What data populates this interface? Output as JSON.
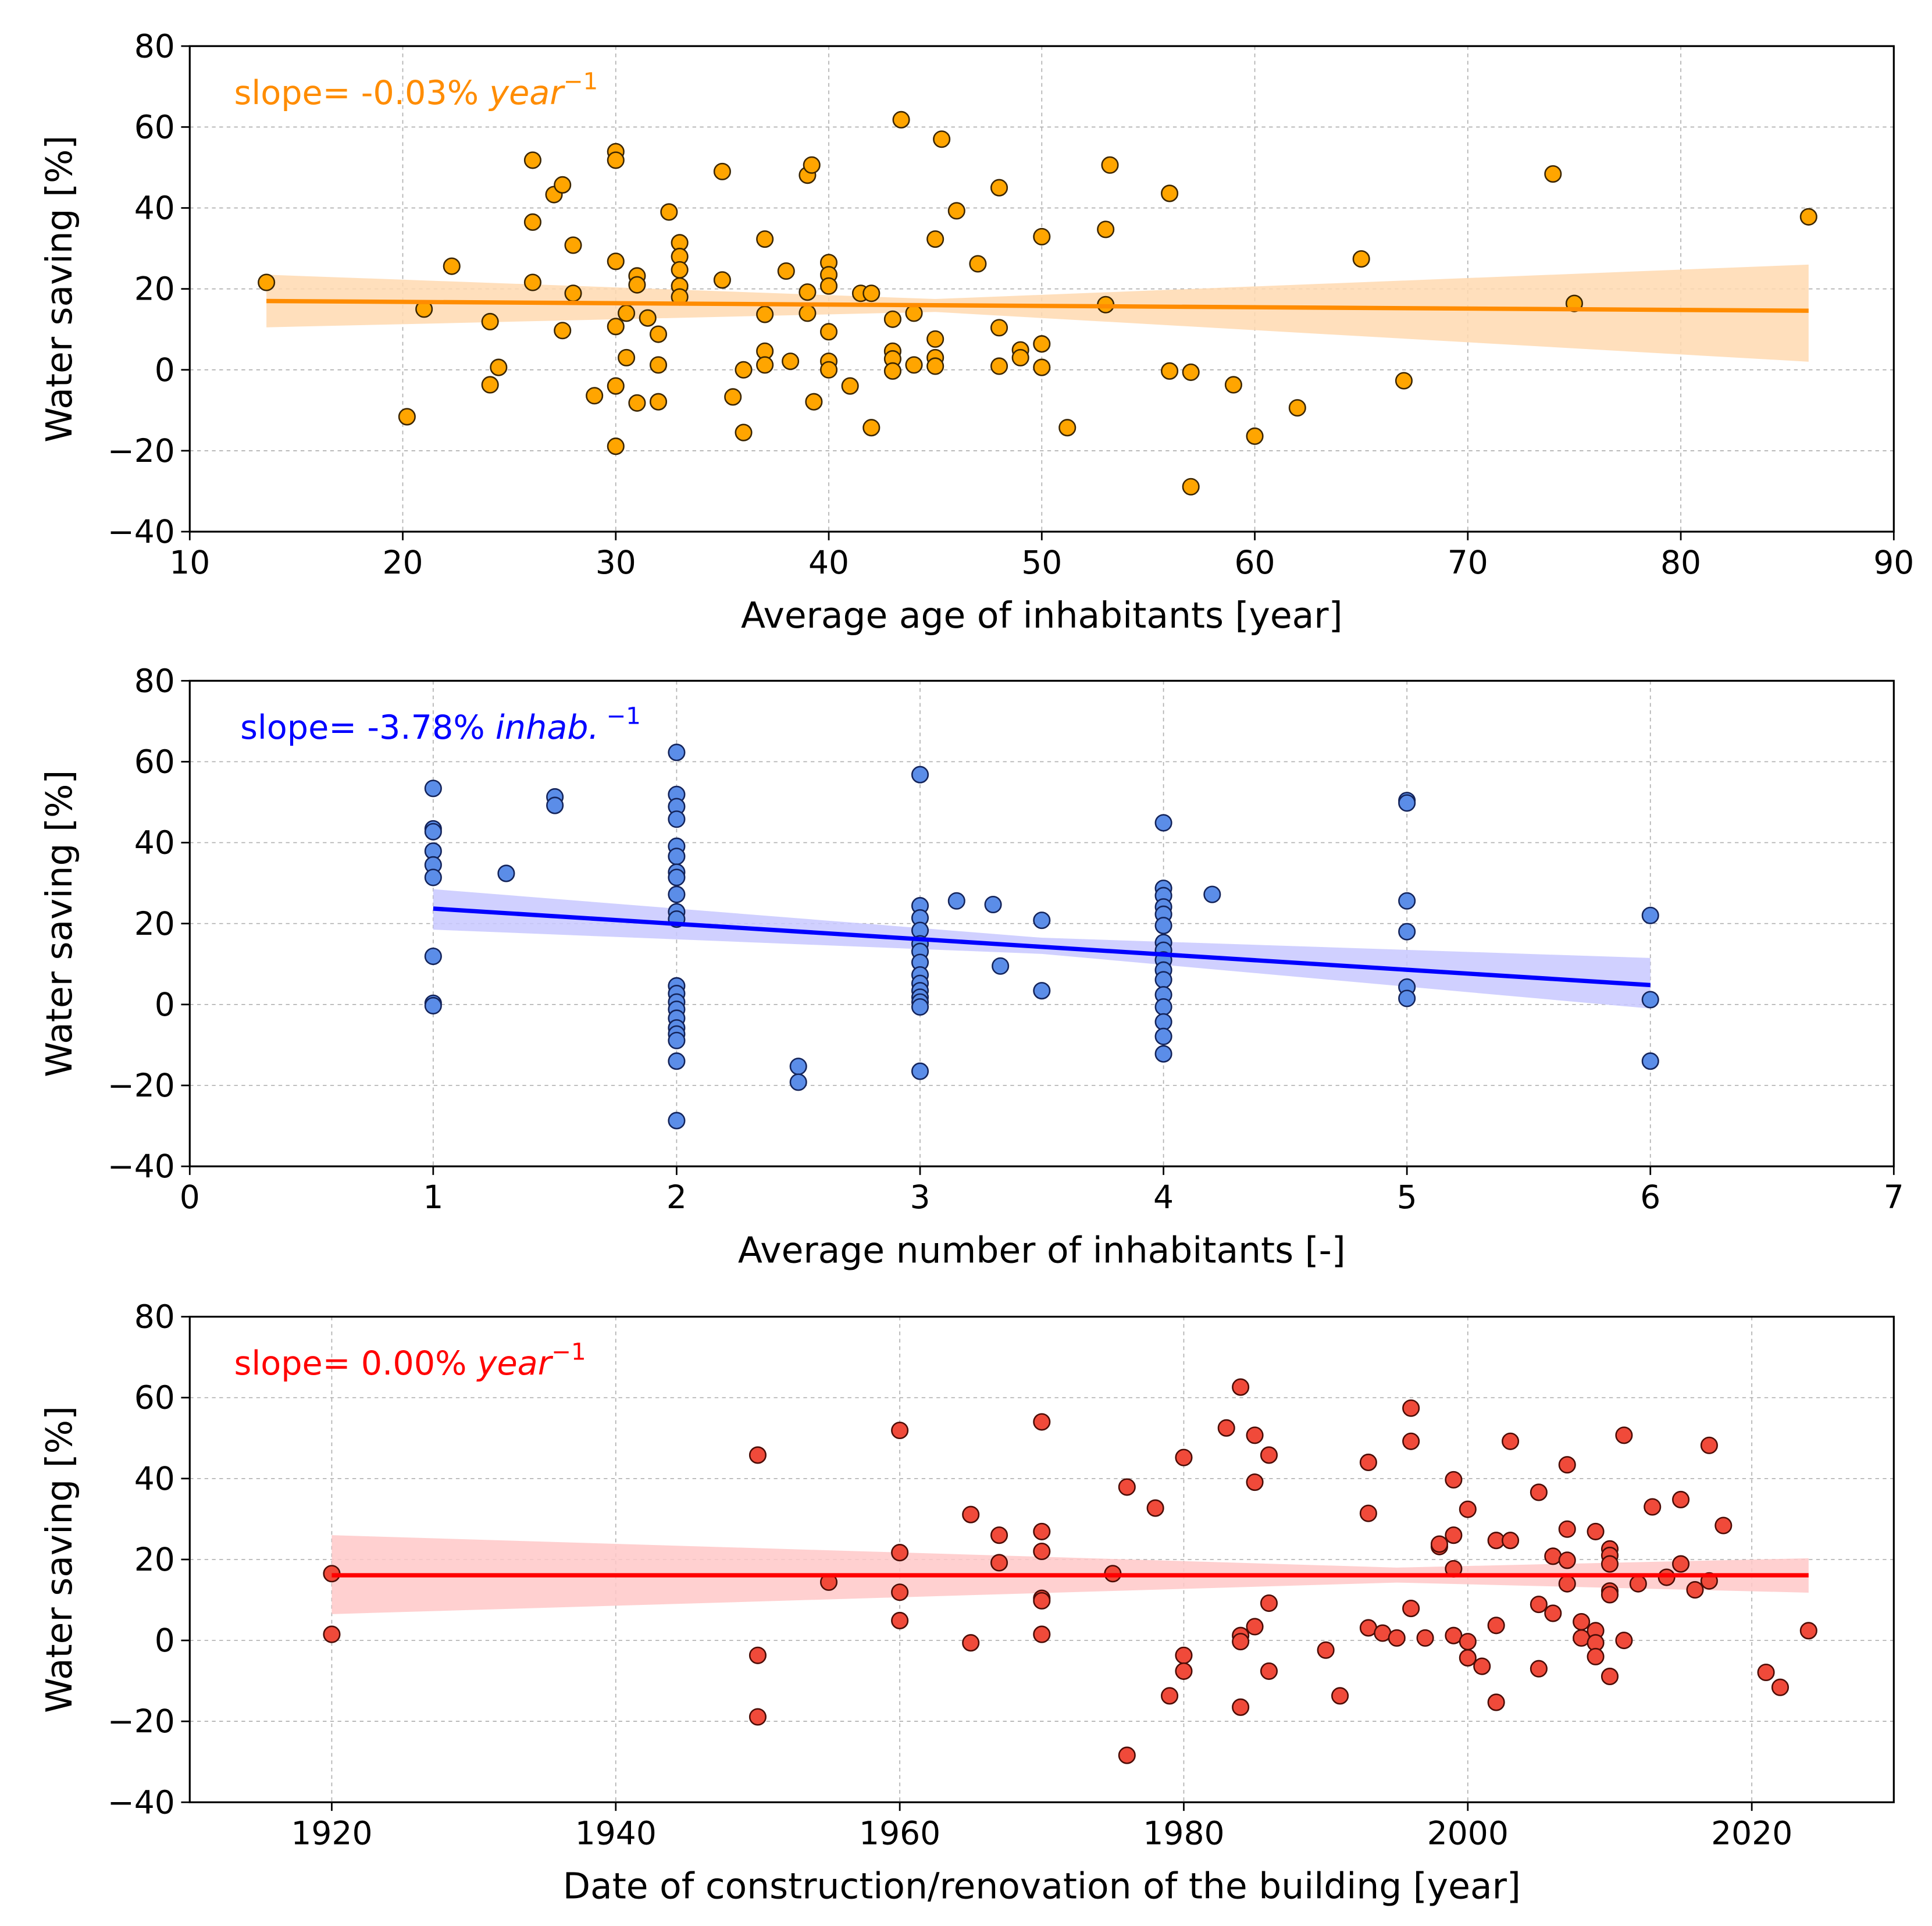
{
  "chart_data": [
    {
      "type": "scatter",
      "title": "",
      "xlabel": "Average age of inhabitants [year]",
      "ylabel": "Water saving [%]",
      "annotation": {
        "text": "slope= -0.03% ",
        "unit": "year",
        "sup": "−1"
      },
      "xlim": [
        10,
        90
      ],
      "ylim": [
        -40,
        80
      ],
      "xticks": [
        10,
        20,
        30,
        40,
        50,
        60,
        70,
        80,
        90
      ],
      "yticks": [
        -40,
        -20,
        0,
        20,
        40,
        60,
        80
      ],
      "xtick_labels": [
        "10",
        "20",
        "30",
        "40",
        "50",
        "60",
        "70",
        "80",
        "90"
      ],
      "grid": true,
      "colors": {
        "point": "#FFA500",
        "edge": "#3a2500",
        "line": "#FF8C00",
        "band": "#FFD9B0",
        "text": "#FF8C00"
      },
      "regression": {
        "x": [
          13.6,
          86
        ],
        "y": [
          17.0,
          14.6
        ]
      },
      "ci": [
        [
          13.6,
          10.5,
          23.5
        ],
        [
          45,
          14.3,
          17.5
        ],
        [
          86,
          2.0,
          26.0
        ]
      ],
      "points": [
        [
          13.6,
          21.6
        ],
        [
          20.2,
          -11.6
        ],
        [
          21,
          15
        ],
        [
          22.3,
          25.6
        ],
        [
          24.1,
          11.9
        ],
        [
          24.1,
          -3.7
        ],
        [
          24.5,
          0.6
        ],
        [
          26.1,
          51.8
        ],
        [
          26.1,
          36.5
        ],
        [
          26.1,
          21.6
        ],
        [
          27.1,
          43.3
        ],
        [
          27.5,
          45.7
        ],
        [
          27.5,
          9.7
        ],
        [
          28,
          30.8
        ],
        [
          28,
          18.9
        ],
        [
          29,
          -6.4
        ],
        [
          30,
          53.9
        ],
        [
          30,
          51.8
        ],
        [
          30,
          26.8
        ],
        [
          30,
          10.7
        ],
        [
          30,
          -4
        ],
        [
          30,
          -18.9
        ],
        [
          30.5,
          14
        ],
        [
          30.5,
          3
        ],
        [
          31,
          23.2
        ],
        [
          31,
          21
        ],
        [
          31,
          -8.2
        ],
        [
          31.5,
          12.8
        ],
        [
          32,
          8.8
        ],
        [
          32,
          1.2
        ],
        [
          32,
          -7.9
        ],
        [
          32.5,
          39
        ],
        [
          33,
          31.4
        ],
        [
          33,
          28
        ],
        [
          33,
          24.7
        ],
        [
          33,
          20.7
        ],
        [
          33,
          18
        ],
        [
          35,
          49
        ],
        [
          35,
          22.2
        ],
        [
          35.5,
          -6.7
        ],
        [
          36,
          0
        ],
        [
          36,
          -15.5
        ],
        [
          37,
          32.3
        ],
        [
          37,
          13.7
        ],
        [
          37,
          4.6
        ],
        [
          37,
          1.2
        ],
        [
          38,
          24.4
        ],
        [
          38.2,
          2.1
        ],
        [
          39,
          48.1
        ],
        [
          39.2,
          50.6
        ],
        [
          39,
          19.2
        ],
        [
          39,
          14
        ],
        [
          39.3,
          -7.9
        ],
        [
          40,
          26.5
        ],
        [
          40,
          23.5
        ],
        [
          40,
          20.7
        ],
        [
          40,
          9.4
        ],
        [
          40,
          2.1
        ],
        [
          40,
          0
        ],
        [
          41,
          -4
        ],
        [
          41.5,
          18.9
        ],
        [
          42,
          18.9
        ],
        [
          42,
          -14.3
        ],
        [
          43,
          12.5
        ],
        [
          43,
          4.6
        ],
        [
          43,
          2.7
        ],
        [
          43,
          -0.3
        ],
        [
          43.4,
          61.8
        ],
        [
          44,
          14
        ],
        [
          44,
          1.2
        ],
        [
          45,
          32.3
        ],
        [
          45,
          7.6
        ],
        [
          45,
          3
        ],
        [
          45,
          0.9
        ],
        [
          45.3,
          57
        ],
        [
          46,
          39.3
        ],
        [
          47,
          26.2
        ],
        [
          48,
          45
        ],
        [
          48,
          10.4
        ],
        [
          48,
          0.9
        ],
        [
          49,
          4.9
        ],
        [
          49,
          3
        ],
        [
          50,
          32.9
        ],
        [
          50,
          6.4
        ],
        [
          50,
          0.6
        ],
        [
          51.2,
          -14.3
        ],
        [
          53,
          34.7
        ],
        [
          53,
          16.1
        ],
        [
          53.2,
          50.6
        ],
        [
          56,
          43.6
        ],
        [
          56,
          -0.3
        ],
        [
          57,
          -0.6
        ],
        [
          57,
          -28.9
        ],
        [
          59,
          -3.7
        ],
        [
          60,
          -16.4
        ],
        [
          62,
          -9.4
        ],
        [
          65,
          27.4
        ],
        [
          67,
          -2.7
        ],
        [
          74,
          48.4
        ],
        [
          75,
          16.4
        ],
        [
          86,
          37.8
        ]
      ]
    },
    {
      "type": "scatter",
      "title": "",
      "xlabel": "Average number of inhabitants [-]",
      "ylabel": "Water saving [%]",
      "annotation": {
        "text": "slope= -3.78% ",
        "unit": "inhab.",
        "sup": " −1"
      },
      "xlim": [
        0,
        7
      ],
      "ylim": [
        -40,
        80
      ],
      "xticks": [
        0,
        1,
        2,
        3,
        4,
        5,
        6,
        7
      ],
      "yticks": [
        -40,
        -20,
        0,
        20,
        40,
        60,
        80
      ],
      "xtick_labels": [
        "0",
        "1",
        "2",
        "3",
        "4",
        "5",
        "6",
        "7"
      ],
      "grid": true,
      "colors": {
        "point": "#5B8DE8",
        "edge": "#13235a",
        "line": "#0000FF",
        "band": "#C8C8FF",
        "text": "#0000FF"
      },
      "regression": {
        "x": [
          1,
          6
        ],
        "y": [
          23.7,
          4.8
        ]
      },
      "ci": [
        [
          1,
          18.5,
          28.5
        ],
        [
          3.5,
          12.5,
          16.5
        ],
        [
          6,
          -1.0,
          11.5
        ]
      ],
      "points": [
        [
          1,
          53.4
        ],
        [
          1,
          43.4
        ],
        [
          1,
          42.7
        ],
        [
          1,
          37.9
        ],
        [
          1,
          34.5
        ],
        [
          1,
          31.4
        ],
        [
          1,
          11.9
        ],
        [
          1,
          0.3
        ],
        [
          1,
          -0.3
        ],
        [
          1.3,
          32.4
        ],
        [
          1.5,
          51.3
        ],
        [
          1.5,
          49.2
        ],
        [
          2,
          62.3
        ],
        [
          2,
          51.9
        ],
        [
          2,
          48.9
        ],
        [
          2,
          45.8
        ],
        [
          2,
          39.1
        ],
        [
          2,
          36.6
        ],
        [
          2,
          32.7
        ],
        [
          2,
          31.4
        ],
        [
          2,
          27.2
        ],
        [
          2,
          22.9
        ],
        [
          2,
          21.1
        ],
        [
          2,
          4.6
        ],
        [
          2,
          2.7
        ],
        [
          2,
          0.6
        ],
        [
          2,
          -1.2
        ],
        [
          2,
          -3.4
        ],
        [
          2,
          -5.8
        ],
        [
          2,
          -7.3
        ],
        [
          2,
          -8.9
        ],
        [
          2,
          -14
        ],
        [
          2,
          -28.7
        ],
        [
          2.5,
          -15.3
        ],
        [
          2.5,
          -19.2
        ],
        [
          3,
          56.8
        ],
        [
          3,
          24.4
        ],
        [
          3,
          21.4
        ],
        [
          3,
          18.3
        ],
        [
          3,
          15
        ],
        [
          3,
          13.1
        ],
        [
          3,
          10.4
        ],
        [
          3,
          7.3
        ],
        [
          3,
          5.2
        ],
        [
          3,
          3.4
        ],
        [
          3,
          1.8
        ],
        [
          3,
          0.6
        ],
        [
          3,
          -0.6
        ],
        [
          3,
          -16.5
        ],
        [
          3.15,
          25.6
        ],
        [
          3.3,
          24.7
        ],
        [
          3.33,
          9.5
        ],
        [
          3.5,
          20.8
        ],
        [
          3.5,
          3.4
        ],
        [
          4,
          44.9
        ],
        [
          4,
          28.7
        ],
        [
          4,
          26.9
        ],
        [
          4,
          24.1
        ],
        [
          4,
          22.3
        ],
        [
          4,
          19.5
        ],
        [
          4,
          15.3
        ],
        [
          4,
          13.4
        ],
        [
          4,
          11
        ],
        [
          4,
          8.5
        ],
        [
          4,
          6.1
        ],
        [
          4,
          2.4
        ],
        [
          4,
          -0.6
        ],
        [
          4,
          -4.3
        ],
        [
          4,
          -7.9
        ],
        [
          4,
          -12.2
        ],
        [
          4.2,
          27.2
        ],
        [
          5,
          50.4
        ],
        [
          5,
          49.8
        ],
        [
          5,
          25.6
        ],
        [
          5,
          18
        ],
        [
          5,
          4.3
        ],
        [
          5,
          1.5
        ],
        [
          6,
          22
        ],
        [
          6,
          1.2
        ],
        [
          6,
          -14
        ]
      ]
    },
    {
      "type": "scatter",
      "title": "",
      "xlabel": "Date of construction/renovation of the building [year]",
      "ylabel": "Water saving [%]",
      "annotation": {
        "text": "slope= 0.00% ",
        "unit": "year",
        "sup": "−1"
      },
      "xlim": [
        1910,
        2030
      ],
      "ylim": [
        -40,
        80
      ],
      "xticks": [
        1920,
        1940,
        1960,
        1980,
        2000,
        2020
      ],
      "yticks": [
        -40,
        -20,
        0,
        20,
        40,
        60,
        80
      ],
      "xtick_labels": [
        "1920",
        "1940",
        "1960",
        "1980",
        "2000",
        "2020"
      ],
      "grid": true,
      "colors": {
        "point": "#F04A3A",
        "edge": "#4a0c06",
        "line": "#FF0000",
        "band": "#FFC8C8",
        "text": "#FF0000"
      },
      "regression": {
        "x": [
          1920,
          2024
        ],
        "y": [
          16.1,
          16.1
        ]
      },
      "ci": [
        [
          1920,
          6.5,
          26.0
        ],
        [
          1995,
          14.3,
          18.0
        ],
        [
          2024,
          11.8,
          20.3
        ]
      ],
      "points": [
        [
          1920,
          16.5
        ],
        [
          1920,
          1.5
        ],
        [
          1950,
          45.8
        ],
        [
          1950,
          -3.7
        ],
        [
          1950,
          -18.9
        ],
        [
          1955,
          14.4
        ],
        [
          1960,
          51.9
        ],
        [
          1960,
          21.7
        ],
        [
          1960,
          11.9
        ],
        [
          1960,
          4.9
        ],
        [
          1965,
          31.1
        ],
        [
          1965,
          -0.6
        ],
        [
          1967,
          26
        ],
        [
          1967,
          19.2
        ],
        [
          1970,
          54
        ],
        [
          1970,
          26.9
        ],
        [
          1970,
          22
        ],
        [
          1970,
          10.4
        ],
        [
          1970,
          9.8
        ],
        [
          1970,
          1.5
        ],
        [
          1975,
          16.5
        ],
        [
          1976,
          37.9
        ],
        [
          1976,
          -28.4
        ],
        [
          1978,
          32.7
        ],
        [
          1979,
          -13.7
        ],
        [
          1980,
          45.2
        ],
        [
          1980,
          -3.7
        ],
        [
          1980,
          -7.6
        ],
        [
          1983,
          52.5
        ],
        [
          1984,
          62.6
        ],
        [
          1984,
          1.2
        ],
        [
          1984,
          -0.3
        ],
        [
          1984,
          -16.5
        ],
        [
          1985,
          50.7
        ],
        [
          1985,
          39.1
        ],
        [
          1985,
          3.4
        ],
        [
          1986,
          45.8
        ],
        [
          1986,
          9.2
        ],
        [
          1986,
          -7.6
        ],
        [
          1990,
          -2.4
        ],
        [
          1991,
          -13.7
        ],
        [
          1993,
          44
        ],
        [
          1993,
          31.4
        ],
        [
          1993,
          3.1
        ],
        [
          1994,
          1.8
        ],
        [
          1995,
          0.6
        ],
        [
          1996,
          57.4
        ],
        [
          1996,
          49.2
        ],
        [
          1996,
          7.9
        ],
        [
          1997,
          0.6
        ],
        [
          1998,
          23.2
        ],
        [
          1998,
          23.8
        ],
        [
          1999,
          39.7
        ],
        [
          1999,
          26
        ],
        [
          1999,
          17.7
        ],
        [
          1999,
          1.2
        ],
        [
          2000,
          32.4
        ],
        [
          2000,
          -0.3
        ],
        [
          2000,
          -4.3
        ],
        [
          2001,
          -6.4
        ],
        [
          2002,
          24.7
        ],
        [
          2002,
          3.7
        ],
        [
          2002,
          -15.3
        ],
        [
          2003,
          49.2
        ],
        [
          2003,
          24.7
        ],
        [
          2005,
          36.6
        ],
        [
          2005,
          8.9
        ],
        [
          2005,
          -7
        ],
        [
          2006,
          20.8
        ],
        [
          2006,
          6.7
        ],
        [
          2007,
          43.4
        ],
        [
          2007,
          27.5
        ],
        [
          2007,
          19.8
        ],
        [
          2007,
          14
        ],
        [
          2008,
          4.6
        ],
        [
          2008,
          0.6
        ],
        [
          2009,
          26.9
        ],
        [
          2009,
          2.4
        ],
        [
          2009,
          -0.6
        ],
        [
          2009,
          -4
        ],
        [
          2010,
          22.6
        ],
        [
          2010,
          21
        ],
        [
          2010,
          18.9
        ],
        [
          2010,
          12.2
        ],
        [
          2010,
          11.3
        ],
        [
          2010,
          -8.9
        ],
        [
          2011,
          50.7
        ],
        [
          2011,
          0
        ],
        [
          2012,
          14
        ],
        [
          2013,
          33
        ],
        [
          2014,
          15.6
        ],
        [
          2015,
          34.8
        ],
        [
          2015,
          18.9
        ],
        [
          2016,
          12.5
        ],
        [
          2017,
          48.2
        ],
        [
          2017,
          14.7
        ],
        [
          2018,
          28.4
        ],
        [
          2021,
          -7.9
        ],
        [
          2022,
          -11.6
        ],
        [
          2024,
          2.4
        ]
      ]
    }
  ]
}
